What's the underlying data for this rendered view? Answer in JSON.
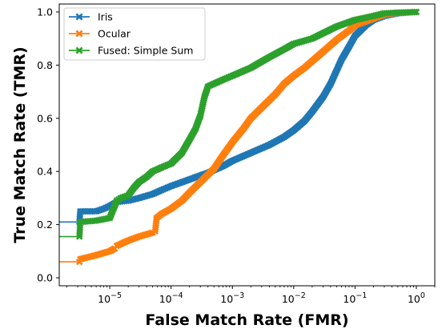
{
  "chart_data": {
    "type": "line",
    "title": "",
    "xlabel": "False Match Rate (FMR)",
    "ylabel": "True Match Rate (TMR)",
    "xscale": "log",
    "xlim": [
      1.5e-06,
      2
    ],
    "ylim": [
      -0.03,
      1.03
    ],
    "xticks": [
      {
        "value": 1e-05,
        "base": "10",
        "exp": "−5"
      },
      {
        "value": 0.0001,
        "base": "10",
        "exp": "−4"
      },
      {
        "value": 0.001,
        "base": "10",
        "exp": "−3"
      },
      {
        "value": 0.01,
        "base": "10",
        "exp": "−2"
      },
      {
        "value": 0.1,
        "base": "10",
        "exp": "−1"
      },
      {
        "value": 1,
        "base": "10",
        "exp": "0"
      }
    ],
    "yticks": [
      {
        "value": 0.0,
        "label": "0.0"
      },
      {
        "value": 0.2,
        "label": "0.2"
      },
      {
        "value": 0.4,
        "label": "0.4"
      },
      {
        "value": 0.6,
        "label": "0.6"
      },
      {
        "value": 0.8,
        "label": "0.8"
      },
      {
        "value": 1.0,
        "label": "1.0"
      }
    ],
    "grid": false,
    "legend_position": "top-left",
    "marker": "x",
    "series": [
      {
        "name": "Iris",
        "color": "#1f77b4",
        "left_edge_y": 0.21,
        "x": [
          3.2e-06,
          3.3e-06,
          6e-06,
          8e-06,
          1e-05,
          1.3e-05,
          2e-05,
          3e-05,
          5e-05,
          7e-05,
          0.0001,
          0.0002,
          0.0004,
          0.0007,
          0.001,
          0.002,
          0.004,
          0.007,
          0.01,
          0.015,
          0.02,
          0.03,
          0.04,
          0.06,
          0.08,
          0.1,
          0.15,
          0.2,
          0.3,
          0.5,
          1
        ],
        "y": [
          0.21,
          0.25,
          0.25,
          0.26,
          0.27,
          0.285,
          0.29,
          0.3,
          0.315,
          0.33,
          0.345,
          0.37,
          0.395,
          0.42,
          0.44,
          0.47,
          0.5,
          0.53,
          0.555,
          0.59,
          0.625,
          0.68,
          0.73,
          0.82,
          0.87,
          0.91,
          0.95,
          0.97,
          0.985,
          0.995,
          1.0
        ]
      },
      {
        "name": "Ocular",
        "color": "#ff7f0e",
        "left_edge_y": 0.06,
        "x": [
          3.2e-06,
          3.3e-06,
          6e-06,
          1e-05,
          1.2e-05,
          1.3e-05,
          2e-05,
          3e-05,
          5e-05,
          5.5e-05,
          5.8e-05,
          7e-05,
          0.0001,
          0.00015,
          0.0002,
          0.0003,
          0.0005,
          0.0007,
          0.001,
          0.0015,
          0.002,
          0.003,
          0.005,
          0.007,
          0.01,
          0.015,
          0.02,
          0.03,
          0.05,
          0.08,
          0.1,
          0.2,
          0.3,
          0.5,
          1
        ],
        "y": [
          0.06,
          0.07,
          0.085,
          0.1,
          0.11,
          0.12,
          0.14,
          0.155,
          0.17,
          0.175,
          0.225,
          0.24,
          0.26,
          0.29,
          0.32,
          0.36,
          0.41,
          0.46,
          0.51,
          0.56,
          0.6,
          0.64,
          0.69,
          0.73,
          0.76,
          0.79,
          0.815,
          0.85,
          0.895,
          0.93,
          0.95,
          0.975,
          0.99,
          0.997,
          1.0
        ]
      },
      {
        "name": "Fused: Simple Sum",
        "color": "#2ca02c",
        "left_edge_y": 0.155,
        "x": [
          3.2e-06,
          3.3e-06,
          6e-06,
          1e-05,
          1.3e-05,
          1.5e-05,
          2e-05,
          2.5e-05,
          3e-05,
          4e-05,
          5e-05,
          7e-05,
          0.0001,
          0.00015,
          0.0002,
          0.00025,
          0.0003,
          0.00035,
          0.0004,
          0.0005,
          0.0007,
          0.001,
          0.002,
          0.004,
          0.007,
          0.01,
          0.02,
          0.03,
          0.05,
          0.1,
          0.2,
          0.3,
          0.5,
          1
        ],
        "y": [
          0.155,
          0.21,
          0.215,
          0.225,
          0.29,
          0.3,
          0.31,
          0.34,
          0.36,
          0.38,
          0.4,
          0.415,
          0.43,
          0.47,
          0.52,
          0.56,
          0.61,
          0.68,
          0.72,
          0.73,
          0.745,
          0.76,
          0.79,
          0.83,
          0.86,
          0.88,
          0.9,
          0.92,
          0.945,
          0.97,
          0.985,
          0.995,
          0.998,
          1.0
        ]
      }
    ]
  }
}
